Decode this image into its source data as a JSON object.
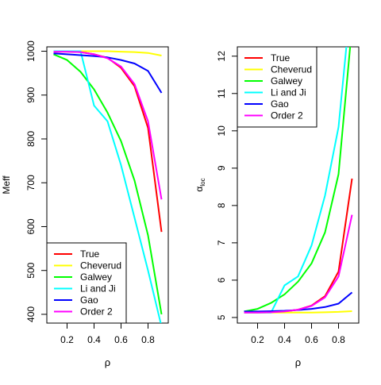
{
  "chart_data": [
    {
      "type": "line",
      "xlabel": "ρ",
      "ylabel": "Meff",
      "xlim": [
        0.05,
        0.95
      ],
      "ylim": [
        380,
        1010
      ],
      "xticks": [
        0.2,
        0.4,
        0.6,
        0.8
      ],
      "xtick_labels": [
        "0.2",
        "0.4",
        "0.6",
        "0.8"
      ],
      "yticks": [
        400,
        500,
        600,
        700,
        800,
        900,
        1000
      ],
      "ytick_labels": [
        "400",
        "500",
        "600",
        "700",
        "800",
        "900",
        "1000"
      ],
      "legend_position": "bottom-left",
      "grid": false,
      "series": [
        {
          "name": "True",
          "color": "#ff0000",
          "x": [
            0.1,
            0.2,
            0.3,
            0.4,
            0.5,
            0.6,
            0.7,
            0.8,
            0.9
          ],
          "y": [
            999,
            999,
            998,
            993,
            985,
            962,
            920,
            825,
            588
          ]
        },
        {
          "name": "Cheverud",
          "color": "#ffff00",
          "x": [
            0.1,
            0.2,
            0.3,
            0.4,
            0.5,
            0.6,
            0.7,
            0.8,
            0.9
          ],
          "y": [
            1000,
            1000,
            1000,
            1000,
            1000,
            999,
            998,
            996,
            990
          ]
        },
        {
          "name": "Galwey",
          "color": "#00ff00",
          "x": [
            0.1,
            0.2,
            0.3,
            0.4,
            0.5,
            0.6,
            0.7,
            0.8,
            0.9
          ],
          "y": [
            993,
            980,
            953,
            913,
            860,
            795,
            705,
            580,
            400
          ]
        },
        {
          "name": "Li and Ji",
          "color": "#00ffff",
          "x": [
            0.1,
            0.2,
            0.3,
            0.4,
            0.5,
            0.6,
            0.7,
            0.8,
            0.9
          ],
          "y": [
            1000,
            1000,
            1000,
            876,
            840,
            740,
            620,
            500,
            372
          ]
        },
        {
          "name": "Gao",
          "color": "#0000ff",
          "x": [
            0.1,
            0.2,
            0.3,
            0.4,
            0.5,
            0.6,
            0.7,
            0.8,
            0.9
          ],
          "y": [
            995,
            993,
            991,
            989,
            986,
            980,
            972,
            955,
            905
          ]
        },
        {
          "name": "Order 2",
          "color": "#ff00ff",
          "x": [
            0.1,
            0.2,
            0.3,
            0.4,
            0.5,
            0.6,
            0.7,
            0.8,
            0.9
          ],
          "y": [
            999,
            999,
            998,
            993,
            984,
            965,
            925,
            840,
            662
          ]
        }
      ]
    },
    {
      "type": "line",
      "xlabel": "ρ",
      "ylabel": "α_loc",
      "ylabel_main": "α",
      "ylabel_sub": "loc",
      "xlim": [
        0.05,
        0.95
      ],
      "ylim": [
        4.85,
        12.25
      ],
      "xticks": [
        0.2,
        0.4,
        0.6,
        0.8
      ],
      "xtick_labels": [
        "0.2",
        "0.4",
        "0.6",
        "0.8"
      ],
      "yticks": [
        5,
        6,
        7,
        8,
        9,
        10,
        11,
        12
      ],
      "ytick_labels": [
        "5",
        "6",
        "7",
        "8",
        "9",
        "10",
        "11",
        "12"
      ],
      "legend_position": "top-left",
      "grid": false,
      "series": [
        {
          "name": "True",
          "color": "#ff0000",
          "x": [
            0.1,
            0.2,
            0.3,
            0.4,
            0.5,
            0.6,
            0.7,
            0.8,
            0.9
          ],
          "y": [
            5.13,
            5.13,
            5.14,
            5.16,
            5.21,
            5.32,
            5.57,
            6.23,
            8.72
          ]
        },
        {
          "name": "Cheverud",
          "color": "#ffff00",
          "x": [
            0.1,
            0.2,
            0.3,
            0.4,
            0.5,
            0.6,
            0.7,
            0.8,
            0.9
          ],
          "y": [
            5.13,
            5.13,
            5.13,
            5.13,
            5.13,
            5.13,
            5.14,
            5.15,
            5.17
          ]
        },
        {
          "name": "Galwey",
          "color": "#00ff00",
          "x": [
            0.1,
            0.2,
            0.3,
            0.4,
            0.5,
            0.6,
            0.7,
            0.8,
            0.9
          ],
          "y": [
            5.16,
            5.23,
            5.39,
            5.62,
            5.96,
            6.45,
            7.28,
            8.84,
            12.8
          ]
        },
        {
          "name": "Li and Ji",
          "color": "#00ffff",
          "x": [
            0.1,
            0.2,
            0.3,
            0.4,
            0.5,
            0.6,
            0.7,
            0.8,
            0.9
          ],
          "y": [
            5.13,
            5.13,
            5.13,
            5.86,
            6.1,
            6.93,
            8.27,
            10.1,
            13.8
          ]
        },
        {
          "name": "Gao",
          "color": "#0000ff",
          "x": [
            0.1,
            0.2,
            0.3,
            0.4,
            0.5,
            0.6,
            0.7,
            0.8,
            0.9
          ],
          "y": [
            5.16,
            5.16,
            5.17,
            5.18,
            5.2,
            5.23,
            5.28,
            5.37,
            5.67
          ]
        },
        {
          "name": "Order 2",
          "color": "#ff00ff",
          "x": [
            0.1,
            0.2,
            0.3,
            0.4,
            0.5,
            0.6,
            0.7,
            0.8,
            0.9
          ],
          "y": [
            5.13,
            5.13,
            5.14,
            5.16,
            5.21,
            5.31,
            5.54,
            6.1,
            7.75
          ]
        }
      ]
    }
  ]
}
